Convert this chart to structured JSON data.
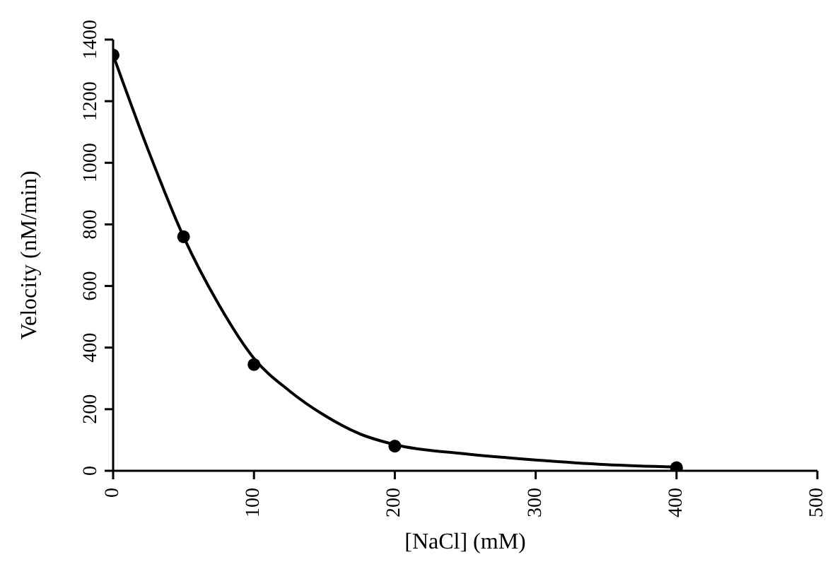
{
  "chart_data": {
    "type": "scatter",
    "xlabel": "[NaCl] (mM)",
    "ylabel": "Velocity (nM/min)",
    "x": [
      0,
      50,
      100,
      200,
      400
    ],
    "series": [
      {
        "color": "#000000",
        "values": [
          1350,
          760,
          345,
          80,
          10
        ],
        "marker": "circle"
      },
      {
        "type": "line",
        "color": "#000000",
        "marker": "none",
        "line_style": "solid",
        "x": [
          0,
          25,
          50,
          75,
          100,
          125,
          150,
          175,
          200,
          250,
          300,
          350,
          400
        ],
        "values": [
          1350,
          1040,
          760,
          540,
          365,
          260,
          180,
          120,
          85,
          55,
          35,
          20,
          12
        ]
      }
    ],
    "xlim": [
      0,
      500
    ],
    "xticks": [
      0,
      100,
      200,
      300,
      400,
      500
    ],
    "ylim": [
      0,
      1400
    ],
    "yticks": [
      0,
      200,
      400,
      600,
      800,
      1000,
      1200,
      1400
    ],
    "grid": false
  }
}
